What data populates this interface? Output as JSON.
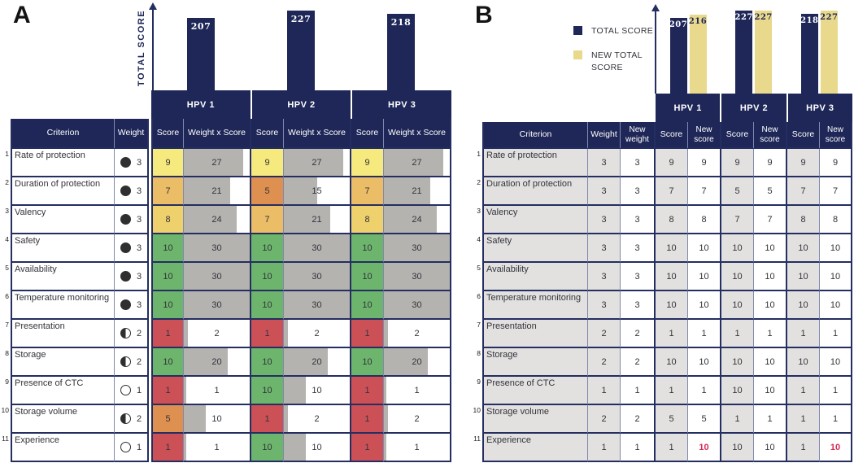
{
  "colors": {
    "navy": "#1e2757",
    "new_total_yellow": "#e9d98c",
    "bar_gray": "#b5b3b0",
    "cell_gray": "#e2e1e0",
    "score_10": "#6db56c",
    "score_9": "#f6e97d",
    "score_8": "#eed06d",
    "score_7": "#eabd66",
    "score_5": "#de9050",
    "score_1": "#cc5157",
    "alert_red": "#d62a56",
    "marker_green": "#2f7d32"
  },
  "chart_data": [
    {
      "type": "bar",
      "title": "Panel A totals",
      "categories": [
        "HPV 1",
        "HPV 2",
        "HPV 3"
      ],
      "values": [
        207,
        227,
        218
      ],
      "xlabel": "",
      "ylabel": "TOTAL SCORE",
      "legend_position": "none",
      "grid": false
    },
    {
      "type": "bar",
      "title": "Panel B totals",
      "categories": [
        "HPV 1",
        "HPV 2",
        "HPV 3"
      ],
      "series": [
        {
          "name": "TOTAL SCORE",
          "values": [
            207,
            227,
            218
          ]
        },
        {
          "name": "NEW TOTAL SCORE",
          "values": [
            216,
            227,
            227
          ]
        }
      ],
      "xlabel": "",
      "ylabel": "",
      "legend_position": "left",
      "grid": false
    }
  ],
  "panelA": {
    "label": "A",
    "axis_label": "TOTAL SCORE",
    "vaccines": [
      "HPV 1",
      "HPV 2",
      "HPV 3"
    ],
    "totals": [
      207,
      227,
      218
    ],
    "columns": {
      "criterion": "Criterion",
      "weight": "Weight",
      "score": "Score",
      "weight_x_score": "Weight x Score"
    },
    "rows": [
      {
        "num": 1,
        "criterion": "Rate of protection",
        "weight": 3,
        "weight_icon": "filled-circle",
        "scores": [
          9,
          9,
          9
        ],
        "wxs": [
          27,
          27,
          27
        ]
      },
      {
        "num": 2,
        "criterion": "Duration of protection",
        "weight": 3,
        "weight_icon": "filled-circle",
        "scores": [
          7,
          5,
          7
        ],
        "wxs": [
          21,
          15,
          21
        ]
      },
      {
        "num": 3,
        "criterion": "Valency",
        "weight": 3,
        "weight_icon": "filled-circle",
        "scores": [
          8,
          7,
          8
        ],
        "wxs": [
          24,
          21,
          24
        ]
      },
      {
        "num": 4,
        "criterion": "Safety",
        "weight": 3,
        "weight_icon": "filled-circle",
        "scores": [
          10,
          10,
          10
        ],
        "wxs": [
          30,
          30,
          30
        ]
      },
      {
        "num": 5,
        "criterion": "Availability",
        "weight": 3,
        "weight_icon": "filled-circle",
        "scores": [
          10,
          10,
          10
        ],
        "wxs": [
          30,
          30,
          30
        ]
      },
      {
        "num": 6,
        "criterion": "Temperature monitoring",
        "weight": 3,
        "weight_icon": "filled-circle",
        "scores": [
          10,
          10,
          10
        ],
        "wxs": [
          30,
          30,
          30
        ]
      },
      {
        "num": 7,
        "criterion": "Presentation",
        "weight": 2,
        "weight_icon": "half-circle",
        "scores": [
          1,
          1,
          1
        ],
        "wxs": [
          2,
          2,
          2
        ]
      },
      {
        "num": 8,
        "criterion": "Storage",
        "weight": 2,
        "weight_icon": "half-circle",
        "scores": [
          10,
          10,
          10
        ],
        "wxs": [
          20,
          20,
          20
        ]
      },
      {
        "num": 9,
        "criterion": "Presence of CTC",
        "weight": 1,
        "weight_icon": "empty-circle",
        "scores": [
          1,
          10,
          1
        ],
        "wxs": [
          1,
          10,
          1
        ]
      },
      {
        "num": 10,
        "criterion": "Storage volume",
        "weight": 2,
        "weight_icon": "half-circle",
        "scores": [
          5,
          1,
          1
        ],
        "wxs": [
          10,
          2,
          2
        ]
      },
      {
        "num": 11,
        "criterion": "Experience",
        "weight": 1,
        "weight_icon": "empty-circle",
        "scores": [
          1,
          10,
          1
        ],
        "wxs": [
          1,
          10,
          1
        ]
      }
    ]
  },
  "panelB": {
    "label": "B",
    "legend": [
      {
        "label": "TOTAL SCORE",
        "color": "navy"
      },
      {
        "label": "NEW TOTAL SCORE",
        "color": "yellow"
      }
    ],
    "vaccines": [
      "HPV 1",
      "HPV 2",
      "HPV 3"
    ],
    "totals": [
      207,
      227,
      218
    ],
    "new_totals": [
      216,
      227,
      227
    ],
    "columns": {
      "criterion": "Criterion",
      "weight": "Weight",
      "new_weight": "New weight",
      "score": "Score",
      "new_score": "New score"
    },
    "rows": [
      {
        "num": 1,
        "criterion": "Rate of protection",
        "weight": 3,
        "new_weight": 3,
        "scores": [
          9,
          9,
          9
        ],
        "new_scores": [
          9,
          9,
          9
        ],
        "red_new": [
          false,
          false,
          false
        ],
        "markers": {
          "new_weight": false,
          "score": [
            false,
            false,
            false
          ],
          "new_score": [
            false,
            false,
            false
          ]
        }
      },
      {
        "num": 2,
        "criterion": "Duration of protection",
        "weight": 3,
        "new_weight": 3,
        "scores": [
          7,
          5,
          7
        ],
        "new_scores": [
          7,
          5,
          7
        ],
        "red_new": [
          false,
          false,
          false
        ],
        "markers": {
          "new_weight": false,
          "score": [
            false,
            false,
            false
          ],
          "new_score": [
            false,
            false,
            false
          ]
        }
      },
      {
        "num": 3,
        "criterion": "Valency",
        "weight": 3,
        "new_weight": 3,
        "scores": [
          8,
          7,
          8
        ],
        "new_scores": [
          8,
          7,
          8
        ],
        "red_new": [
          false,
          false,
          false
        ],
        "markers": {
          "new_weight": false,
          "score": [
            false,
            false,
            false
          ],
          "new_score": [
            false,
            false,
            false
          ]
        }
      },
      {
        "num": 4,
        "criterion": "Safety",
        "weight": 3,
        "new_weight": 3,
        "scores": [
          10,
          10,
          10
        ],
        "new_scores": [
          10,
          10,
          10
        ],
        "red_new": [
          false,
          false,
          false
        ],
        "markers": {
          "new_weight": false,
          "score": [
            false,
            false,
            false
          ],
          "new_score": [
            false,
            false,
            false
          ]
        }
      },
      {
        "num": 5,
        "criterion": "Availability",
        "weight": 3,
        "new_weight": 3,
        "scores": [
          10,
          10,
          10
        ],
        "new_scores": [
          10,
          10,
          10
        ],
        "red_new": [
          false,
          false,
          false
        ],
        "markers": {
          "new_weight": false,
          "score": [
            false,
            false,
            false
          ],
          "new_score": [
            false,
            false,
            false
          ]
        }
      },
      {
        "num": 6,
        "criterion": "Temperature monitoring",
        "weight": 3,
        "new_weight": 3,
        "scores": [
          10,
          10,
          10
        ],
        "new_scores": [
          10,
          10,
          10
        ],
        "red_new": [
          false,
          false,
          false
        ],
        "markers": {
          "new_weight": false,
          "score": [
            false,
            false,
            false
          ],
          "new_score": [
            false,
            false,
            false
          ]
        }
      },
      {
        "num": 7,
        "criterion": "Presentation",
        "weight": 2,
        "new_weight": 2,
        "scores": [
          1,
          1,
          1
        ],
        "new_scores": [
          1,
          1,
          1
        ],
        "red_new": [
          false,
          false,
          false
        ],
        "markers": {
          "new_weight": false,
          "score": [
            false,
            false,
            false
          ],
          "new_score": [
            false,
            false,
            false
          ]
        }
      },
      {
        "num": 8,
        "criterion": "Storage",
        "weight": 2,
        "new_weight": 2,
        "scores": [
          10,
          10,
          10
        ],
        "new_scores": [
          10,
          10,
          10
        ],
        "red_new": [
          false,
          false,
          false
        ],
        "markers": {
          "new_weight": true,
          "score": [
            false,
            true,
            true
          ],
          "new_score": [
            true,
            true,
            true
          ]
        }
      },
      {
        "num": 9,
        "criterion": "Presence of CTC",
        "weight": 1,
        "new_weight": 1,
        "scores": [
          1,
          10,
          1
        ],
        "new_scores": [
          1,
          10,
          1
        ],
        "red_new": [
          false,
          false,
          false
        ],
        "markers": {
          "new_weight": true,
          "score": [
            false,
            true,
            true
          ],
          "new_score": [
            true,
            true,
            true
          ]
        }
      },
      {
        "num": 10,
        "criterion": "Storage volume",
        "weight": 2,
        "new_weight": 2,
        "scores": [
          5,
          1,
          1
        ],
        "new_scores": [
          5,
          1,
          1
        ],
        "red_new": [
          false,
          false,
          false
        ],
        "markers": {
          "new_weight": true,
          "score": [
            false,
            true,
            true
          ],
          "new_score": [
            true,
            true,
            true
          ]
        }
      },
      {
        "num": 11,
        "criterion": "Experience",
        "weight": 1,
        "new_weight": 1,
        "scores": [
          1,
          10,
          1
        ],
        "new_scores": [
          10,
          10,
          10
        ],
        "red_new": [
          true,
          false,
          true
        ],
        "markers": {
          "new_weight": true,
          "score": [
            false,
            false,
            false
          ],
          "new_score": [
            false,
            true,
            false
          ]
        }
      }
    ]
  }
}
